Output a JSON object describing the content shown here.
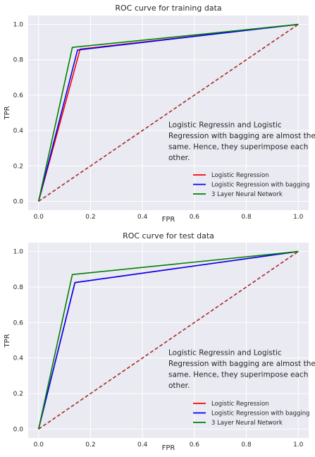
{
  "chart_data": [
    {
      "type": "line",
      "title": "ROC curve for training data",
      "xlabel": "FPR",
      "ylabel": "TPR",
      "xlim": [
        -0.04,
        1.04
      ],
      "ylim": [
        -0.05,
        1.05
      ],
      "xticks": [
        0.0,
        0.2,
        0.4,
        0.6,
        0.8,
        1.0
      ],
      "xtick_labels": [
        "0.0",
        "0.2",
        "0.4",
        "0.6",
        "0.8",
        "1.0"
      ],
      "yticks": [
        0.0,
        0.2,
        0.4,
        0.6,
        0.8,
        1.0
      ],
      "ytick_labels": [
        "0.0",
        "0.2",
        "0.4",
        "0.6",
        "0.8",
        "1.0"
      ],
      "grid": true,
      "legend_position": "lower-right",
      "annotation": [
        "Logistic Regressin and Logistic",
        "Regression with bagging are almost the",
        "same. Hence, they superimpose each",
        "other."
      ],
      "annotation_at": [
        0.5,
        0.33
      ],
      "series": [
        {
          "name": "Logistic Regression",
          "color": "#ff0000",
          "x": [
            0.0,
            0.16,
            1.0
          ],
          "y": [
            0.0,
            0.86,
            1.0
          ],
          "legend": true
        },
        {
          "name": "Logistic Regression with bagging",
          "color": "#0000ff",
          "x": [
            0.0,
            0.15,
            1.0
          ],
          "y": [
            0.0,
            0.855,
            1.0
          ],
          "legend": true
        },
        {
          "name": "3 Layer Neural Network",
          "color": "#008000",
          "x": [
            0.0,
            0.13,
            1.0
          ],
          "y": [
            0.0,
            0.87,
            1.0
          ],
          "legend": true
        },
        {
          "name": "",
          "color": "#a52a2a",
          "dashed": true,
          "x": [
            0.0,
            1.0
          ],
          "y": [
            0.0,
            1.0
          ],
          "legend": false
        }
      ]
    },
    {
      "type": "line",
      "title": "ROC curve for test data",
      "xlabel": "FPR",
      "ylabel": "TPR",
      "xlim": [
        -0.04,
        1.04
      ],
      "ylim": [
        -0.05,
        1.05
      ],
      "xticks": [
        0.0,
        0.2,
        0.4,
        0.6,
        0.8,
        1.0
      ],
      "xtick_labels": [
        "0.0",
        "0.2",
        "0.4",
        "0.6",
        "0.8",
        "1.0"
      ],
      "yticks": [
        0.0,
        0.2,
        0.4,
        0.6,
        0.8,
        1.0
      ],
      "ytick_labels": [
        "0.0",
        "0.2",
        "0.4",
        "0.6",
        "0.8",
        "1.0"
      ],
      "grid": true,
      "legend_position": "lower-right",
      "annotation": [
        "Logistic Regressin and Logistic",
        "Regression with bagging are almost the",
        "same. Hence, they superimpose each",
        "other."
      ],
      "annotation_at": [
        0.5,
        0.33
      ],
      "series": [
        {
          "name": "Logistic Regression",
          "color": "#ff0000",
          "x": [
            0.0,
            0.14,
            1.0
          ],
          "y": [
            0.0,
            0.825,
            1.0
          ],
          "legend": true
        },
        {
          "name": "Logistic Regression with bagging",
          "color": "#0000ff",
          "x": [
            0.0,
            0.14,
            1.0
          ],
          "y": [
            0.0,
            0.825,
            1.0
          ],
          "legend": true
        },
        {
          "name": "3 Layer Neural Network",
          "color": "#008000",
          "x": [
            0.0,
            0.13,
            1.0
          ],
          "y": [
            0.0,
            0.87,
            1.0
          ],
          "legend": true
        },
        {
          "name": "",
          "color": "#a52a2a",
          "dashed": true,
          "x": [
            0.0,
            1.0
          ],
          "y": [
            0.0,
            1.0
          ],
          "legend": false
        }
      ]
    }
  ]
}
